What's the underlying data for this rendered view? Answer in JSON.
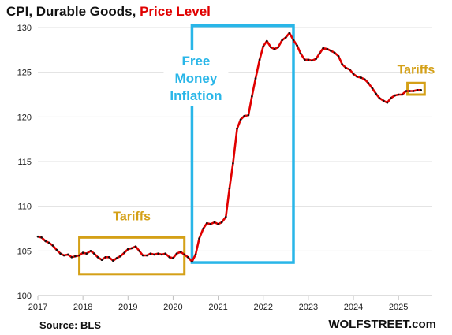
{
  "header": {
    "title_main": "CPI, Durable Goods, ",
    "title_accent": "Price Level"
  },
  "footer": {
    "source": "Source: BLS",
    "brand": "WOLFSTREET.com"
  },
  "colors": {
    "line": "#e00000",
    "markers": "#111111",
    "tariff_box": "#d4a017",
    "inflation_box": "#29b6e8",
    "grid": "#e0e0e0"
  },
  "chart_data": {
    "type": "line",
    "title": "CPI, Durable Goods, Price Level",
    "xlabel": "",
    "ylabel": "",
    "xlim": [
      2017,
      2025.75
    ],
    "ylim": [
      100,
      130
    ],
    "x_ticks": [
      "2017",
      "2018",
      "2019",
      "2020",
      "2021",
      "2022",
      "2023",
      "2024",
      "2025"
    ],
    "y_ticks": [
      "100",
      "105",
      "110",
      "115",
      "120",
      "125",
      "130"
    ],
    "grid": "horizontal",
    "annotations": [
      {
        "text": "Tariffs",
        "color": "#d4a017",
        "box_x": [
          2017.92,
          2020.25
        ],
        "box_y": [
          102.4,
          106.5
        ]
      },
      {
        "text": "Free Money Inflation",
        "lines": [
          "Free",
          "Money",
          "Inflation"
        ],
        "color": "#29b6e8",
        "box_x": [
          2020.42,
          2022.67
        ],
        "box_y": [
          103.7,
          130.2
        ]
      },
      {
        "text": "Tariffs",
        "color": "#d4a017",
        "box_x": [
          2025.2,
          2025.58
        ],
        "box_y": [
          122.5,
          123.8
        ]
      }
    ],
    "series": [
      {
        "values": [
          [
            2017.0,
            106.6
          ],
          [
            2017.08,
            106.5
          ],
          [
            2017.17,
            106.1
          ],
          [
            2017.25,
            105.9
          ],
          [
            2017.33,
            105.6
          ],
          [
            2017.42,
            105.1
          ],
          [
            2017.5,
            104.7
          ],
          [
            2017.58,
            104.5
          ],
          [
            2017.67,
            104.6
          ],
          [
            2017.75,
            104.3
          ],
          [
            2017.83,
            104.4
          ],
          [
            2017.92,
            104.5
          ],
          [
            2018.0,
            104.8
          ],
          [
            2018.08,
            104.7
          ],
          [
            2018.17,
            105.0
          ],
          [
            2018.25,
            104.7
          ],
          [
            2018.33,
            104.3
          ],
          [
            2018.42,
            104.0
          ],
          [
            2018.5,
            104.3
          ],
          [
            2018.58,
            104.3
          ],
          [
            2018.67,
            103.9
          ],
          [
            2018.75,
            104.2
          ],
          [
            2018.83,
            104.4
          ],
          [
            2018.92,
            104.8
          ],
          [
            2019.0,
            105.2
          ],
          [
            2019.08,
            105.3
          ],
          [
            2019.17,
            105.5
          ],
          [
            2019.25,
            105.0
          ],
          [
            2019.33,
            104.5
          ],
          [
            2019.42,
            104.5
          ],
          [
            2019.5,
            104.7
          ],
          [
            2019.58,
            104.6
          ],
          [
            2019.67,
            104.7
          ],
          [
            2019.75,
            104.6
          ],
          [
            2019.83,
            104.7
          ],
          [
            2019.92,
            104.3
          ],
          [
            2020.0,
            104.2
          ],
          [
            2020.08,
            104.7
          ],
          [
            2020.17,
            104.9
          ],
          [
            2020.25,
            104.6
          ],
          [
            2020.33,
            104.3
          ],
          [
            2020.42,
            103.8
          ],
          [
            2020.5,
            104.6
          ],
          [
            2020.58,
            106.4
          ],
          [
            2020.67,
            107.5
          ],
          [
            2020.75,
            108.1
          ],
          [
            2020.83,
            108.0
          ],
          [
            2020.92,
            108.2
          ],
          [
            2021.0,
            108.0
          ],
          [
            2021.08,
            108.2
          ],
          [
            2021.17,
            108.8
          ],
          [
            2021.25,
            112.0
          ],
          [
            2021.33,
            114.8
          ],
          [
            2021.42,
            118.7
          ],
          [
            2021.5,
            119.7
          ],
          [
            2021.58,
            120.1
          ],
          [
            2021.67,
            120.2
          ],
          [
            2021.75,
            122.3
          ],
          [
            2021.83,
            124.3
          ],
          [
            2021.92,
            126.4
          ],
          [
            2022.0,
            127.9
          ],
          [
            2022.08,
            128.5
          ],
          [
            2022.17,
            127.8
          ],
          [
            2022.25,
            127.6
          ],
          [
            2022.33,
            127.8
          ],
          [
            2022.42,
            128.6
          ],
          [
            2022.5,
            128.9
          ],
          [
            2022.58,
            129.4
          ],
          [
            2022.67,
            128.6
          ],
          [
            2022.75,
            128.0
          ],
          [
            2022.83,
            127.1
          ],
          [
            2022.92,
            126.4
          ],
          [
            2023.0,
            126.4
          ],
          [
            2023.08,
            126.3
          ],
          [
            2023.17,
            126.5
          ],
          [
            2023.25,
            127.1
          ],
          [
            2023.33,
            127.7
          ],
          [
            2023.42,
            127.6
          ],
          [
            2023.5,
            127.4
          ],
          [
            2023.58,
            127.2
          ],
          [
            2023.67,
            126.8
          ],
          [
            2023.75,
            125.9
          ],
          [
            2023.83,
            125.5
          ],
          [
            2023.92,
            125.3
          ],
          [
            2024.0,
            124.8
          ],
          [
            2024.08,
            124.5
          ],
          [
            2024.17,
            124.4
          ],
          [
            2024.25,
            124.2
          ],
          [
            2024.33,
            123.8
          ],
          [
            2024.42,
            123.2
          ],
          [
            2024.5,
            122.6
          ],
          [
            2024.58,
            122.1
          ],
          [
            2024.67,
            121.8
          ],
          [
            2024.75,
            121.6
          ],
          [
            2024.83,
            122.1
          ],
          [
            2024.92,
            122.4
          ],
          [
            2025.0,
            122.5
          ],
          [
            2025.08,
            122.5
          ],
          [
            2025.17,
            122.9
          ],
          [
            2025.25,
            122.9
          ],
          [
            2025.33,
            122.9
          ],
          [
            2025.42,
            123.0
          ],
          [
            2025.5,
            123.0
          ]
        ]
      }
    ]
  }
}
